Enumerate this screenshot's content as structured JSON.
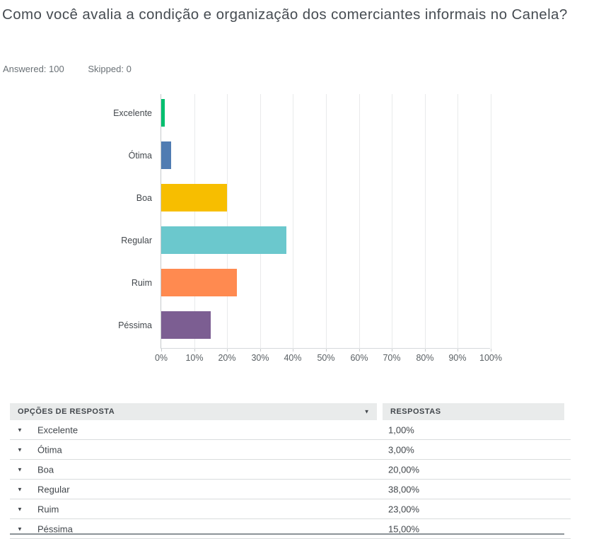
{
  "header": {
    "title": "Como você avalia a condição e organização dos comerciantes informais no Canela?",
    "answered_label": "Answered:",
    "answered_value": "100",
    "skipped_label": "Skipped:",
    "skipped_value": "0"
  },
  "chart_data": {
    "type": "bar",
    "orientation": "horizontal",
    "title": "",
    "categories": [
      "Excelente",
      "Ótima",
      "Boa",
      "Regular",
      "Ruim",
      "Péssima"
    ],
    "values": [
      1,
      3,
      20,
      38,
      23,
      15
    ],
    "value_unit": "%",
    "bar_colors": [
      "#00BF6F",
      "#507CB2",
      "#F7BE00",
      "#6BC8CD",
      "#FF8A50",
      "#7C5E92"
    ],
    "x_tick_labels": [
      "0%",
      "10%",
      "20%",
      "30%",
      "40%",
      "50%",
      "60%",
      "70%",
      "80%",
      "90%",
      "100%"
    ],
    "xlim": [
      0,
      100
    ],
    "grid": "vertical",
    "legend_position": "none"
  },
  "table": {
    "columns": [
      {
        "label": "OPÇÕES DE RESPOSTA",
        "sort_icon": "▼"
      },
      {
        "label": "RESPOSTAS"
      }
    ],
    "row_expand_icon": "▼",
    "rows": [
      {
        "option": "Excelente",
        "response": "1,00%"
      },
      {
        "option": "Ótima",
        "response": "3,00%"
      },
      {
        "option": "Boa",
        "response": "20,00%"
      },
      {
        "option": "Regular",
        "response": "38,00%"
      },
      {
        "option": "Ruim",
        "response": "23,00%"
      },
      {
        "option": "Péssima",
        "response": "15,00%"
      }
    ]
  }
}
